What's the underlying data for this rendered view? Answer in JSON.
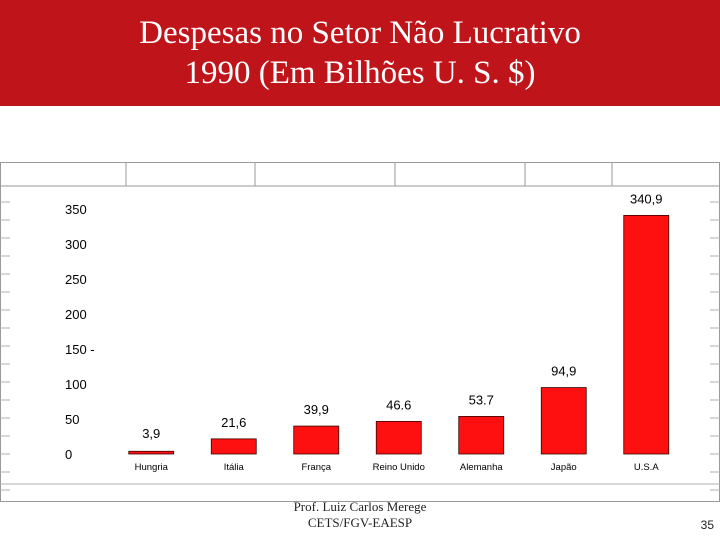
{
  "slide": {
    "title_line1": "Despesas no Setor Não Lucrativo",
    "title_line2": "1990 (Em Bilhões U. S. $)",
    "footer_line1": "Prof. Luiz Carlos Merege",
    "footer_line2": "CETS/FGV-EAESP",
    "page_number": "35"
  },
  "colors": {
    "title_band": "#c0141b",
    "bar": "#ff1010"
  },
  "chart_data": {
    "type": "bar",
    "categories": [
      "Hungria",
      "Itália",
      "França",
      "Reino Unido",
      "Alemanha",
      "Japão",
      "U.S.A"
    ],
    "values": [
      3.9,
      21.6,
      39.9,
      46.6,
      53.7,
      94.9,
      340.9
    ],
    "value_labels": [
      "3,9",
      "21,6",
      "39,9",
      "46.6",
      "53.7",
      "94,9",
      "340,9"
    ],
    "y_ticks": [
      "0",
      "50",
      "100",
      "150 -",
      "200",
      "250",
      "300",
      "350"
    ],
    "tick_values": [
      0,
      50,
      100,
      150,
      200,
      250,
      300,
      350
    ],
    "ylim": [
      0,
      350
    ],
    "title": "",
    "xlabel": "",
    "ylabel": "",
    "grid": false
  }
}
